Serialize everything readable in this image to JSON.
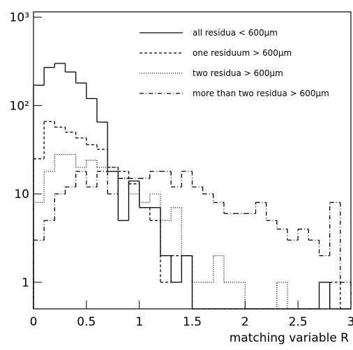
{
  "chart_data": {
    "type": "histogram",
    "log_y": true,
    "x_label": "matching variable R",
    "bins": [
      0,
      0.1,
      0.2,
      0.3,
      0.4,
      0.5,
      0.6,
      0.7,
      0.8,
      0.9,
      1.0,
      1.1,
      1.2,
      1.3,
      1.4,
      1.5,
      1.6,
      1.7,
      1.8,
      1.9,
      2.0,
      2.1,
      2.2,
      2.3,
      2.4,
      2.5,
      2.6,
      2.7,
      2.8,
      2.9,
      3.0
    ],
    "xlim": [
      0,
      3
    ],
    "xticks": [
      0,
      0.5,
      1,
      1.5,
      2,
      2.5,
      3
    ],
    "ylim": [
      0.5,
      1150
    ],
    "yticks": [
      1,
      10,
      {
        "value": 100,
        "label": "10²"
      },
      {
        "value": 1000,
        "label": "10³"
      }
    ],
    "series": [
      {
        "name": "all residua < 600μm",
        "style": "solid",
        "color": "#000000",
        "values": [
          170,
          270,
          300,
          240,
          180,
          120,
          65,
          18,
          5,
          14,
          7,
          7,
          2,
          1,
          2,
          0,
          0,
          0,
          0,
          0,
          0,
          0,
          0,
          0,
          0,
          0,
          0,
          1,
          0,
          0
        ]
      },
      {
        "name": "one residuum > 600μm",
        "style": "dashed",
        "color": "#000000",
        "values": [
          25,
          66,
          57,
          50,
          43,
          36,
          32,
          20,
          18,
          13,
          7,
          5,
          1,
          2,
          2,
          0,
          0,
          0,
          0,
          0,
          0,
          0,
          0,
          0,
          0,
          0,
          0,
          0,
          1,
          0
        ]
      },
      {
        "name": "two residua > 600μm",
        "style": "dotted",
        "color": "#000000",
        "values": [
          8,
          18,
          28,
          28,
          20,
          24,
          20,
          20,
          15,
          10,
          8,
          10,
          5,
          7,
          2,
          1,
          1,
          2,
          1,
          1,
          0,
          0,
          0,
          1,
          0,
          0,
          0,
          0,
          0,
          0
        ]
      },
      {
        "name": "more than two residua > 600μm",
        "style": "dashdot",
        "color": "#000000",
        "values": [
          3,
          5,
          10,
          12,
          18,
          12,
          18,
          10,
          15,
          15,
          15,
          18,
          18,
          12,
          18,
          12,
          10,
          8,
          6,
          6,
          6,
          8,
          5,
          4,
          3,
          4,
          3,
          2,
          8,
          1
        ]
      }
    ]
  }
}
